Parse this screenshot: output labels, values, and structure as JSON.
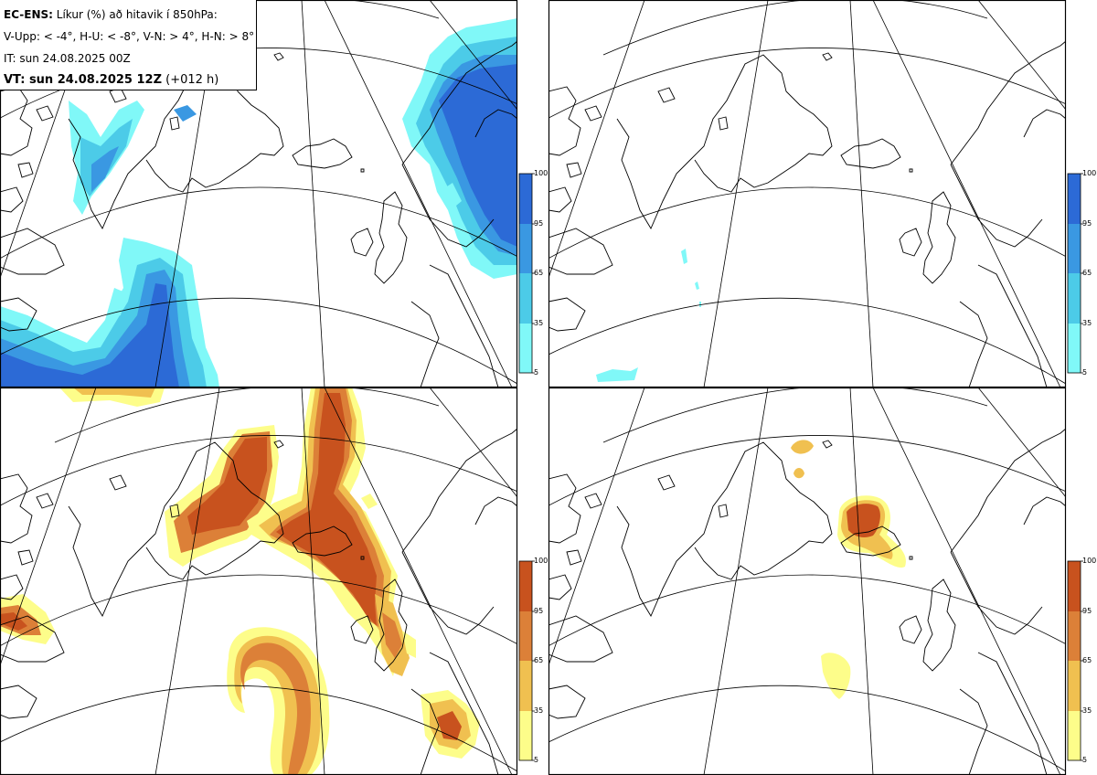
{
  "header": {
    "model": "EC-ENS:",
    "title_rest": "Líkur (%) að hitavik í 850hPa:",
    "thresholds": "V-Upp: < -4°, H-U: < -8°, V-N: > 4°, H-N: > 8°",
    "init_time": "IT: sun 24.08.2025 00Z",
    "valid_time": "VT: sun 24.08.2025 12Z",
    "lead": "(+012 h)"
  },
  "panels": [
    {
      "position": "top-left",
      "threshold": "< -4°",
      "palette": "cold"
    },
    {
      "position": "top-right",
      "threshold": "< -8°",
      "palette": "cold"
    },
    {
      "position": "bottom-left",
      "threshold": "> 4°",
      "palette": "warm"
    },
    {
      "position": "bottom-right",
      "threshold": "> 8°",
      "palette": "warm"
    }
  ],
  "colorbar": {
    "ticks": [
      "5",
      "35",
      "65",
      "95",
      "100"
    ],
    "levels": [
      5,
      35,
      65,
      95,
      100
    ],
    "cold_colors": [
      "#80f8f8",
      "#4ccbe8",
      "#3a98e2",
      "#2c6ad6"
    ],
    "warm_colors": [
      "#fdfd8a",
      "#f0c050",
      "#dc8038",
      "#c8521e"
    ]
  },
  "colors": {
    "coast": "#000000",
    "grid": "#000000",
    "frame": "#000000"
  }
}
